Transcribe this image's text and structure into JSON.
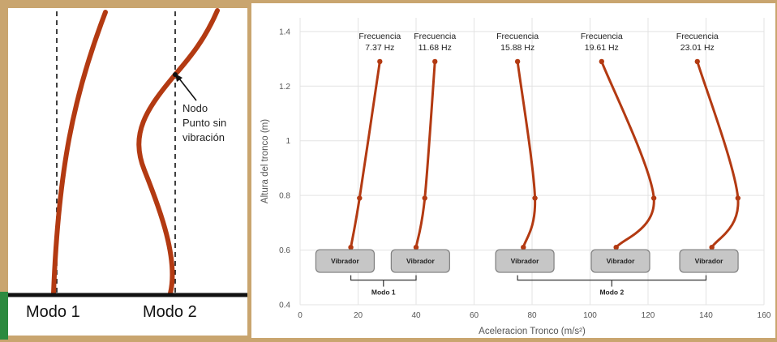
{
  "left_diagram": {
    "mode1_label": "Modo 1",
    "mode2_label": "Modo 2",
    "node_annotation": [
      "Nodo",
      "Punto sin",
      "vibración"
    ]
  },
  "chart_data": {
    "type": "line",
    "title": "",
    "xlabel": "Aceleracion Tronco (m/s²)",
    "ylabel": "Altura del tronco (m)",
    "xlim": [
      0,
      160
    ],
    "ylim": [
      0.4,
      1.45
    ],
    "x_ticks": [
      0,
      20,
      40,
      60,
      80,
      100,
      120,
      140,
      160
    ],
    "y_ticks": [
      0.4,
      0.6,
      0.8,
      1,
      1.2,
      1.4
    ],
    "grid": true,
    "series": [
      {
        "label": [
          "Frecuencia",
          "7.37 Hz"
        ],
        "x": [
          17.5,
          20.5,
          27.5
        ],
        "y": [
          0.61,
          0.79,
          1.29
        ]
      },
      {
        "label": [
          "Frecuencia",
          "11.68 Hz"
        ],
        "x": [
          40,
          43,
          46.5
        ],
        "y": [
          0.61,
          0.79,
          1.29
        ]
      },
      {
        "label": [
          "Frecuencia",
          "15.88 Hz"
        ],
        "x": [
          77,
          81,
          75
        ],
        "y": [
          0.61,
          0.79,
          1.29
        ]
      },
      {
        "label": [
          "Frecuencia",
          "19.61 Hz"
        ],
        "x": [
          109,
          122,
          104
        ],
        "y": [
          0.61,
          0.79,
          1.29
        ]
      },
      {
        "label": [
          "Frecuencia",
          "23.01 Hz"
        ],
        "x": [
          142,
          151,
          137
        ],
        "y": [
          0.61,
          0.79,
          1.29
        ]
      }
    ],
    "vibrator_label": "Vibrador",
    "vibrators": [
      {
        "x": 15.5,
        "y": 0.56
      },
      {
        "x": 41.5,
        "y": 0.56
      },
      {
        "x": 77.5,
        "y": 0.56
      },
      {
        "x": 110.5,
        "y": 0.56
      },
      {
        "x": 141,
        "y": 0.56
      }
    ],
    "groups": [
      {
        "label": "Modo 1",
        "x_range": [
          17.5,
          40
        ],
        "y": 0.49
      },
      {
        "label": "Modo 2",
        "x_range": [
          75,
          140
        ],
        "y": 0.49
      }
    ],
    "colors": {
      "curve": "#b33a12",
      "vibrator_fill": "#c6c6c6",
      "vibrator_stroke": "#7f7f7f"
    }
  }
}
